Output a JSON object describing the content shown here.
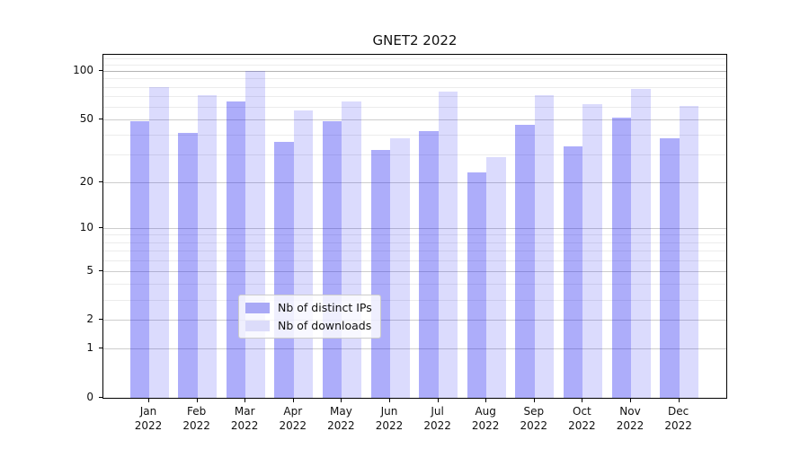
{
  "chart_data": {
    "type": "bar",
    "title": "GNET2 2022",
    "categories": [
      "Jan 2022",
      "Feb 2022",
      "Mar 2022",
      "Apr 2022",
      "May 2022",
      "Jun 2022",
      "Jul 2022",
      "Aug 2022",
      "Sep 2022",
      "Oct 2022",
      "Nov 2022",
      "Dec 2022"
    ],
    "series": [
      {
        "name": "Nb of distinct IPs",
        "key": "distinct-ips",
        "color": "rgba(15,15,240,0.34)",
        "legend_color": "#a9a9f6",
        "values": [
          49,
          41,
          65,
          36,
          49,
          32,
          42,
          23,
          46,
          34,
          51,
          38
        ]
      },
      {
        "name": "Nb of downloads",
        "key": "downloads",
        "color": "rgba(15,15,240,0.15)",
        "legend_color": "#dcdcfa",
        "values": [
          80,
          71,
          100,
          57,
          65,
          38,
          75,
          29,
          71,
          62,
          77,
          61
        ]
      }
    ],
    "xlabel": "",
    "ylabel": "",
    "yscale": "log1p",
    "ylim": [
      0,
      126
    ],
    "yticks": [
      0,
      1,
      2,
      5,
      10,
      20,
      50,
      100
    ],
    "minor_gridlines": [
      3,
      4,
      6,
      7,
      8,
      9,
      30,
      40,
      60,
      70,
      80,
      90,
      110,
      120
    ],
    "grid": true,
    "legend_position": "lower center"
  }
}
